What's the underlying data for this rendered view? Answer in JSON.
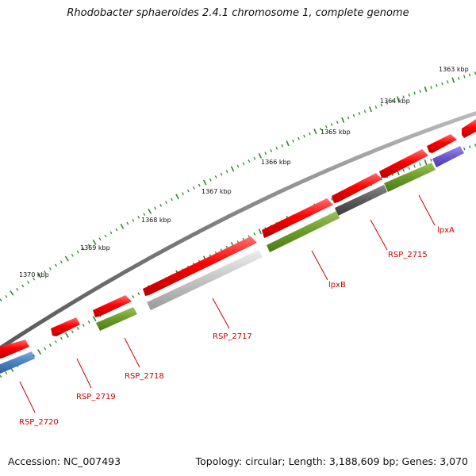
{
  "title": "Rhodobacter sphaeroides 2.4.1 chromosome 1, complete genome",
  "footer": {
    "accession": "Accession: NC_007493",
    "summary": "Topology: circular; Length: 3,188,609 bp; Genes: 3,070"
  },
  "colors": {
    "backbone": "#7a7a7a",
    "tick": "#2a8a2a",
    "label": "#cc0000",
    "gene_red": "#ff0000",
    "gene_olive": "#6b9b2a",
    "gene_grey_light": "#bdbdbd",
    "gene_grey_dark": "#5a5a5a",
    "gene_blue": "#4a80c0",
    "gene_purple": "#6a5acd"
  },
  "scale_labels": [
    "1363 kbp",
    "1364 kbp",
    "1365 kbp",
    "1366 kbp",
    "1367 kbp",
    "1368 kbp",
    "1369 kbp",
    "1370 kbp"
  ],
  "gene_labels": [
    "lpxA",
    "RSP_2715",
    "lpxB",
    "RSP_2717",
    "RSP_2718",
    "RSP_2719",
    "RSP_2720"
  ]
}
